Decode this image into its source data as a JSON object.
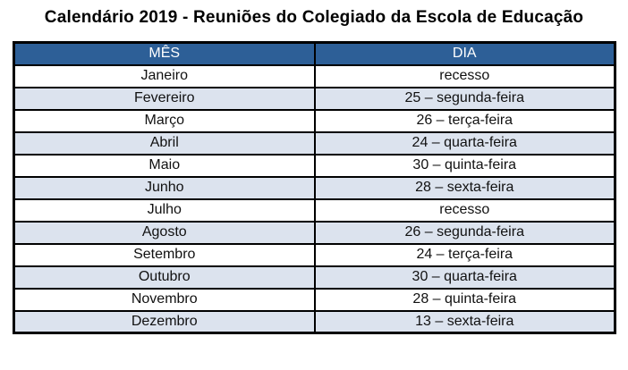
{
  "title": "Calendário 2019 - Reuniões do Colegiado da Escola de Educação",
  "table": {
    "headers": [
      "MÊS",
      "DIA"
    ],
    "rows": [
      [
        "Janeiro",
        "recesso"
      ],
      [
        "Fevereiro",
        "25 – segunda-feira"
      ],
      [
        "Março",
        "26 – terça-feira"
      ],
      [
        "Abril",
        "24 – quarta-feira"
      ],
      [
        "Maio",
        "30 – quinta-feira"
      ],
      [
        "Junho",
        "28 – sexta-feira"
      ],
      [
        "Julho",
        "recesso"
      ],
      [
        "Agosto",
        "26 – segunda-feira"
      ],
      [
        "Setembro",
        "24 – terça-feira"
      ],
      [
        "Outubro",
        "30 – quarta-feira"
      ],
      [
        "Novembro",
        "28 – quinta-feira"
      ],
      [
        "Dezembro",
        "13 – sexta-feira"
      ]
    ]
  },
  "colors": {
    "header_bg": "#2D5F97",
    "header_text": "#FFFFFF",
    "row_alt_bg": "#DCE3EE",
    "border": "#000000"
  }
}
